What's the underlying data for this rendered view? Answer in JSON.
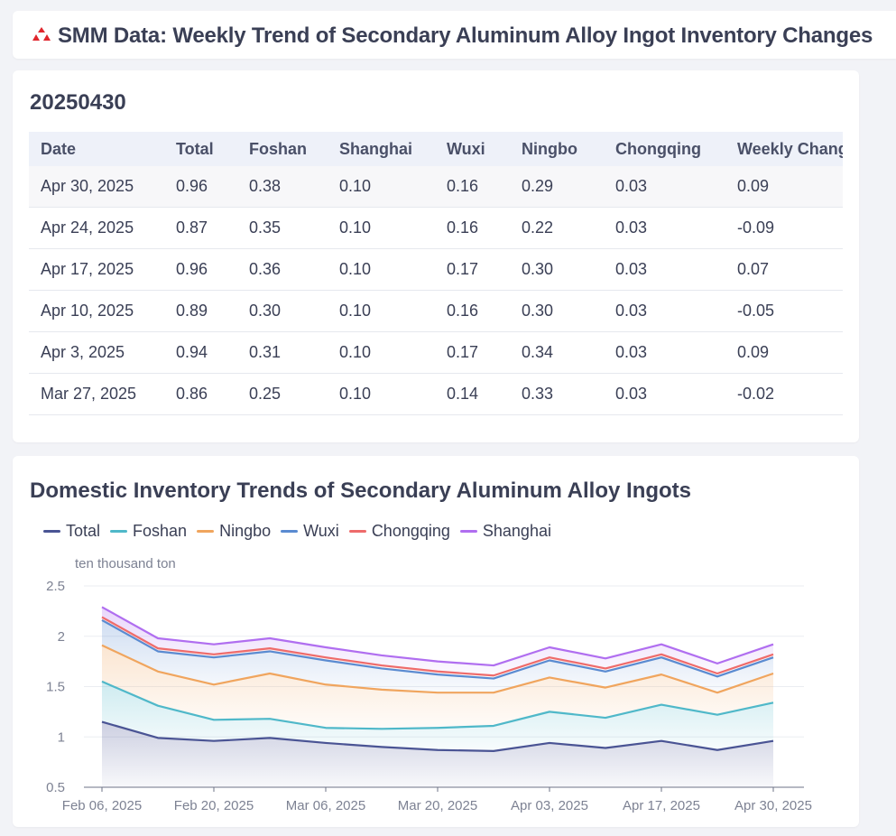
{
  "header": {
    "title": "SMM Data: Weekly Trend of Secondary Aluminum Alloy Ingot Inventory Changes",
    "logo_icon": "smm-logo-icon",
    "logo_color": "#e0262d"
  },
  "table_section": {
    "date_title": "20250430",
    "columns": [
      "Date",
      "Total",
      "Foshan",
      "Shanghai",
      "Wuxi",
      "Ningbo",
      "Chongqing",
      "Weekly Change"
    ],
    "rows": [
      [
        "Apr 30, 2025",
        "0.96",
        "0.38",
        "0.10",
        "0.16",
        "0.29",
        "0.03",
        "0.09"
      ],
      [
        "Apr 24, 2025",
        "0.87",
        "0.35",
        "0.10",
        "0.16",
        "0.22",
        "0.03",
        "-0.09"
      ],
      [
        "Apr 17, 2025",
        "0.96",
        "0.36",
        "0.10",
        "0.17",
        "0.30",
        "0.03",
        "0.07"
      ],
      [
        "Apr 10, 2025",
        "0.89",
        "0.30",
        "0.10",
        "0.16",
        "0.30",
        "0.03",
        "-0.05"
      ],
      [
        "Apr 3, 2025",
        "0.94",
        "0.31",
        "0.10",
        "0.17",
        "0.34",
        "0.03",
        "0.09"
      ],
      [
        "Mar 27, 2025",
        "0.86",
        "0.25",
        "0.10",
        "0.14",
        "0.33",
        "0.03",
        "-0.02"
      ]
    ]
  },
  "chart_data": {
    "type": "area",
    "stacked": true,
    "title": "Domestic Inventory Trends of Secondary Aluminum Alloy Ingots",
    "ylabel": "ten thousand ton",
    "xlabel": "",
    "ylim": [
      0.5,
      2.5
    ],
    "yticks": [
      0.5,
      1,
      1.5,
      2,
      2.5
    ],
    "ytick_labels": [
      "0.5",
      "1",
      "1.5",
      "2",
      "2.5"
    ],
    "x": [
      "Feb 06, 2025",
      "Feb 13, 2025",
      "Feb 20, 2025",
      "Feb 27, 2025",
      "Mar 06, 2025",
      "Mar 13, 2025",
      "Mar 20, 2025",
      "Mar 27, 2025",
      "Apr 03, 2025",
      "Apr 10, 2025",
      "Apr 17, 2025",
      "Apr 24, 2025",
      "Apr 30, 2025"
    ],
    "xtick_labels": [
      "Feb 06, 2025",
      "Feb 20, 2025",
      "Mar 06, 2025",
      "Mar 20, 2025",
      "Apr 03, 2025",
      "Apr 17, 2025",
      "Apr 30, 2025"
    ],
    "legend_position": "top-left",
    "grid": true,
    "series": [
      {
        "name": "Total",
        "color": "#4a5494",
        "values": [
          1.15,
          0.99,
          0.96,
          0.99,
          0.94,
          0.9,
          0.87,
          0.86,
          0.94,
          0.89,
          0.96,
          0.87,
          0.96
        ]
      },
      {
        "name": "Foshan",
        "color": "#4fb8c9",
        "values": [
          1.55,
          1.31,
          1.17,
          1.18,
          1.09,
          1.08,
          1.09,
          1.11,
          1.25,
          1.19,
          1.32,
          1.22,
          1.34
        ]
      },
      {
        "name": "Ningbo",
        "color": "#f0a55e",
        "values": [
          1.91,
          1.65,
          1.52,
          1.63,
          1.52,
          1.47,
          1.44,
          1.44,
          1.59,
          1.49,
          1.62,
          1.44,
          1.63
        ]
      },
      {
        "name": "Wuxi",
        "color": "#5a8bd1",
        "values": [
          2.16,
          1.85,
          1.79,
          1.85,
          1.76,
          1.68,
          1.62,
          1.58,
          1.76,
          1.65,
          1.79,
          1.6,
          1.79
        ]
      },
      {
        "name": "Chongqing",
        "color": "#ee6b6b",
        "values": [
          2.19,
          1.88,
          1.82,
          1.88,
          1.79,
          1.71,
          1.65,
          1.61,
          1.79,
          1.68,
          1.82,
          1.63,
          1.82
        ]
      },
      {
        "name": "Shanghai",
        "color": "#b06ef0",
        "values": [
          2.29,
          1.98,
          1.92,
          1.98,
          1.89,
          1.81,
          1.75,
          1.71,
          1.89,
          1.78,
          1.92,
          1.73,
          1.92
        ]
      }
    ]
  }
}
